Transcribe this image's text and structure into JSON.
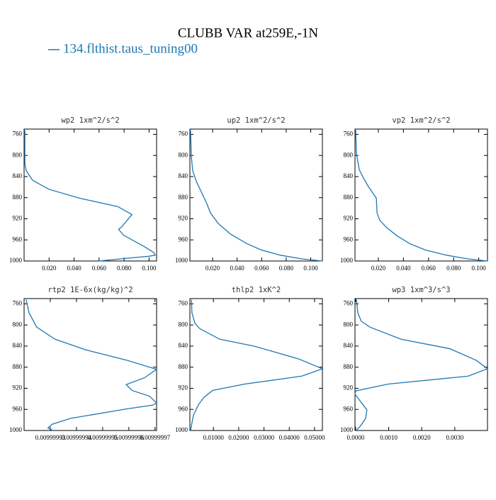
{
  "title": "CLUBB VAR at259E,-1N",
  "legend": {
    "name": "134.flthist.taus_tuning00",
    "color": "#1f77b4"
  },
  "chart_data": [
    {
      "type": "line",
      "title": "wp2  1xm^2/s^2",
      "color": "#1f77b4",
      "xlim": [
        0,
        0.106
      ],
      "xticks": [
        {
          "value": 0.02,
          "label": "0.020"
        },
        {
          "value": 0.04,
          "label": "0.040"
        },
        {
          "value": 0.06,
          "label": "0.060"
        },
        {
          "value": 0.08,
          "label": "0.080"
        },
        {
          "value": 0.1,
          "label": "0.100"
        }
      ],
      "ylim": [
        1000,
        750
      ],
      "yticks": [
        760,
        800,
        840,
        880,
        920,
        960,
        1000
      ],
      "y": [
        752,
        816,
        829,
        847,
        864,
        881,
        897,
        912,
        936,
        940,
        951,
        973,
        984,
        989,
        991,
        995,
        1000
      ],
      "values": [
        0.0006,
        0.0006,
        0.0017,
        0.0068,
        0.0197,
        0.0445,
        0.075,
        0.0863,
        0.0778,
        0.0756,
        0.0795,
        0.0964,
        0.1037,
        0.1049,
        0.0998,
        0.0818,
        0.0598
      ]
    },
    {
      "type": "line",
      "title": "up2  1xm^2/s^2",
      "color": "#1f77b4",
      "xlim": [
        0.0015,
        0.1095
      ],
      "xticks": [
        {
          "value": 0.02,
          "label": "0.020"
        },
        {
          "value": 0.04,
          "label": "0.040"
        },
        {
          "value": 0.06,
          "label": "0.060"
        },
        {
          "value": 0.08,
          "label": "0.080"
        },
        {
          "value": 0.1,
          "label": "0.100"
        }
      ],
      "ylim": [
        1000,
        750
      ],
      "yticks": [
        760,
        800,
        840,
        880,
        920,
        960,
        1000
      ],
      "y": [
        752,
        803,
        829,
        849,
        872,
        892,
        909,
        929,
        949,
        967,
        979,
        989,
        996,
        1000
      ],
      "values": [
        0.002,
        0.0027,
        0.0038,
        0.0067,
        0.0114,
        0.0154,
        0.0183,
        0.0247,
        0.0346,
        0.0479,
        0.0595,
        0.0752,
        0.0926,
        0.1095
      ]
    },
    {
      "type": "line",
      "title": "vp2  1xm^2/s^2",
      "color": "#1f77b4",
      "xlim": [
        0.0014,
        0.107
      ],
      "xticks": [
        {
          "value": 0.02,
          "label": "0.020"
        },
        {
          "value": 0.04,
          "label": "0.040"
        },
        {
          "value": 0.06,
          "label": "0.060"
        },
        {
          "value": 0.08,
          "label": "0.080"
        },
        {
          "value": 0.1,
          "label": "0.100"
        }
      ],
      "ylim": [
        1000,
        750
      ],
      "yticks": [
        760,
        800,
        840,
        880,
        920,
        960,
        1000
      ],
      "y": [
        752,
        796,
        827,
        843,
        859,
        881,
        909,
        923,
        936,
        952,
        967,
        979,
        989,
        996,
        1000
      ],
      "values": [
        0.002,
        0.0025,
        0.0048,
        0.0082,
        0.0121,
        0.0184,
        0.019,
        0.0212,
        0.0263,
        0.0347,
        0.0449,
        0.0573,
        0.0743,
        0.0912,
        0.107
      ]
    },
    {
      "type": "line",
      "title": "rtp2  1E-6x(kg/kg)^2",
      "color": "#1f77b4",
      "xlim": [
        0.00999992,
        0.0099999706
      ],
      "xticks": [
        0.00999993,
        0.00999994,
        0.00999995,
        0.00999996,
        0.00999997
      ],
      "ylim": [
        1000,
        750
      ],
      "yticks": [
        760,
        800,
        840,
        880,
        920,
        960,
        1000
      ],
      "y": [
        752,
        777,
        804,
        827,
        847,
        867,
        884,
        900,
        913,
        924,
        935,
        948,
        952,
        959,
        977,
        988,
        995,
        1000
      ],
      "values": [
        0.0099999208,
        0.0099999219,
        0.0099999248,
        0.0099999318,
        0.0099999434,
        0.0099999593,
        0.0099999706,
        0.009999966,
        0.009999959,
        0.0099999612,
        0.0099999679,
        0.0099999706,
        0.009999969,
        0.0099999593,
        0.0099999378,
        0.0099999308,
        0.0099999291,
        0.009999931
      ]
    },
    {
      "type": "line",
      "title": "thlp2  1xK^2",
      "color": "#1f77b4",
      "xlim": [
        0.0007,
        0.0531
      ],
      "xticks": [
        {
          "value": 0.01,
          "label": "0.01000"
        },
        {
          "value": 0.02,
          "label": "0.02000"
        },
        {
          "value": 0.03,
          "label": "0.03000"
        },
        {
          "value": 0.04,
          "label": "0.04000"
        },
        {
          "value": 0.05,
          "label": "0.05000"
        }
      ],
      "ylim": [
        1000,
        750
      ],
      "yticks": [
        760,
        800,
        840,
        880,
        920,
        960,
        1000
      ],
      "y": [
        752,
        777,
        797,
        807,
        827,
        840,
        864,
        883,
        897,
        912,
        924,
        937,
        951,
        971,
        991,
        1000
      ],
      "values": [
        0.0013,
        0.0015,
        0.0027,
        0.0046,
        0.0125,
        0.026,
        0.0435,
        0.0531,
        0.0449,
        0.0224,
        0.0097,
        0.0063,
        0.0041,
        0.0021,
        0.0013,
        0.001
      ]
    },
    {
      "type": "line",
      "title": "wp3  1xm^3/s^3",
      "color": "#1f77b4",
      "xlim": [
        -2e-05,
        0.00399
      ],
      "xticks": [
        {
          "value": 0,
          "label": "0.0000"
        },
        {
          "value": 0.001,
          "label": "0.0010"
        },
        {
          "value": 0.002,
          "label": "0.0020"
        },
        {
          "value": 0.003,
          "label": "0.0030"
        }
      ],
      "ylim": [
        1000,
        750
      ],
      "yticks": [
        760,
        800,
        840,
        880,
        920,
        960,
        1000
      ],
      "y": [
        752,
        777,
        793,
        804,
        827,
        845,
        867,
        883,
        897,
        912,
        925,
        931,
        947,
        961,
        977,
        991,
        1000
      ],
      "values": [
        2.3e-05,
        6.6e-05,
        0.00017,
        0.00043,
        0.00137,
        0.00285,
        0.00365,
        0.00399,
        0.0034,
        0.00099,
        1e-06,
        -2e-05,
        0.00017,
        0.00034,
        0.0003,
        0.00015,
        2e-05
      ]
    }
  ]
}
